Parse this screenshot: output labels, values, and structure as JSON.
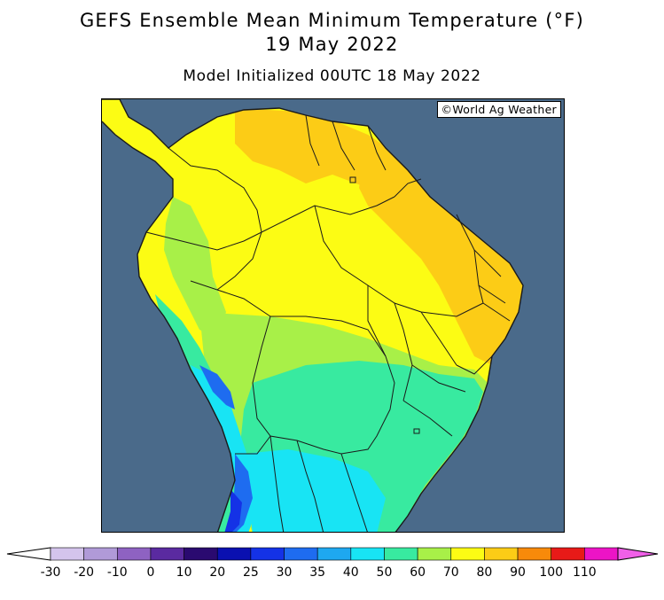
{
  "title_line1": "GEFS Ensemble Mean Minimum Temperature (°F)",
  "title_line2": "19 May 2022",
  "subtitle": "Model Initialized 00UTC 18 May 2022",
  "credit": "©World Ag Weather",
  "colors": {
    "ocean": "#4a6a8a",
    "border": "#1a1a1a"
  },
  "colorbar": {
    "ticks": [
      "-30",
      "-20",
      "-10",
      "0",
      "10",
      "20",
      "25",
      "30",
      "35",
      "40",
      "50",
      "60",
      "70",
      "80",
      "90",
      "100",
      "110"
    ],
    "colors": [
      "#d4c4ec",
      "#b09ad8",
      "#8e62c2",
      "#5a2aa0",
      "#2a0a70",
      "#0a10b0",
      "#1432e6",
      "#1e6cf0",
      "#1ea8f0",
      "#18e4f4",
      "#38eaa0",
      "#a8f048",
      "#fcfc14",
      "#fccc16",
      "#f88a0a",
      "#e81a18",
      "#ec14c6"
    ],
    "low_end_color": "#ffffff",
    "high_end_color": "#f060e8"
  }
}
